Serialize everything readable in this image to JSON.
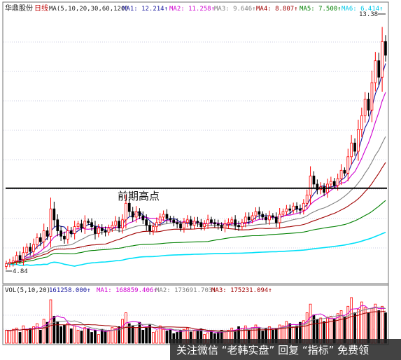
{
  "header": {
    "stock_name": "华鼎股份",
    "period": "日线",
    "ma_params": "MA(5,10,20,30,60,120)",
    "ma_values": [
      {
        "text": "MA1: 12.214↑",
        "color": "#1a1aa0"
      },
      {
        "text": "MA2: 11.258↑",
        "color": "#d000d0"
      },
      {
        "text": "MA3: 9.646↑",
        "color": "#808080"
      },
      {
        "text": "MA4: 8.807↑",
        "color": "#a00000"
      },
      {
        "text": "MA5: 7.500↑",
        "color": "#008000"
      },
      {
        "text": "MA6: 6.414↑",
        "color": "#00c8e8"
      }
    ]
  },
  "annotation": {
    "text": "前期高点"
  },
  "price_labels": {
    "max": "13.38",
    "min": "4.84"
  },
  "volume_header": {
    "params": "VOL(5,10,20)",
    "values": [
      {
        "text": "161258.000↑",
        "color": "#1a1aa0"
      },
      {
        "text": "MA1: 168859.406↑",
        "color": "#d000d0"
      },
      {
        "text": "MA2: 173691.703↑",
        "color": "#808080"
      },
      {
        "text": "MA3: 175231.094↑",
        "color": "#a00000"
      }
    ]
  },
  "watermark": {
    "text": "关注微信 “老韩实盘” 回复 “指标” 免费领"
  },
  "colors": {
    "up": "#ff0000",
    "down": "#000000",
    "grid": "#9ca0c8"
  },
  "chart_data": {
    "type": "candlestick",
    "ylim": [
      4.4,
      14.0
    ],
    "resistance_level": 7.75,
    "price_range": [
      4.84,
      13.38
    ],
    "closes": [
      5.0,
      5.05,
      5.1,
      5.3,
      5.15,
      5.4,
      5.6,
      5.45,
      5.7,
      5.95,
      5.8,
      6.2,
      6.0,
      7.0,
      6.6,
      6.2,
      6.0,
      5.9,
      6.2,
      6.1,
      6.35,
      6.45,
      6.3,
      6.55,
      6.5,
      6.35,
      6.1,
      6.3,
      6.2,
      6.15,
      6.3,
      6.4,
      6.55,
      6.3,
      6.6,
      7.2,
      6.9,
      6.7,
      6.9,
      6.75,
      6.6,
      6.4,
      6.2,
      6.35,
      6.5,
      6.7,
      6.8,
      6.65,
      6.6,
      6.5,
      6.45,
      6.3,
      6.5,
      6.6,
      6.4,
      6.55,
      6.5,
      6.35,
      6.45,
      6.6,
      6.5,
      6.45,
      6.4,
      6.3,
      6.45,
      6.5,
      6.6,
      6.4,
      6.35,
      6.5,
      6.7,
      6.6,
      6.75,
      6.9,
      6.8,
      6.7,
      6.6,
      6.75,
      6.7,
      6.5,
      6.8,
      6.9,
      7.0,
      6.95,
      7.1,
      7.0,
      6.95,
      7.2,
      7.5,
      8.2,
      7.9,
      7.7,
      7.8,
      7.6,
      7.9,
      8.0,
      7.85,
      8.1,
      8.4,
      8.3,
      8.9,
      9.4,
      9.1,
      9.9,
      10.4,
      11.0,
      10.6,
      11.6,
      12.4,
      11.8,
      13.1,
      12.6
    ],
    "volumes": [
      0.3,
      0.28,
      0.32,
      0.35,
      0.25,
      0.4,
      0.3,
      0.34,
      0.38,
      0.45,
      0.3,
      0.55,
      0.48,
      1.0,
      0.62,
      0.5,
      0.38,
      0.42,
      0.46,
      0.33,
      0.4,
      0.3,
      0.28,
      0.36,
      0.34,
      0.25,
      0.3,
      0.2,
      0.32,
      0.28,
      0.3,
      0.36,
      0.34,
      0.38,
      0.55,
      0.7,
      0.45,
      0.4,
      0.36,
      0.48,
      0.3,
      0.35,
      0.42,
      0.25,
      0.28,
      0.4,
      0.32,
      0.28,
      0.3,
      0.22,
      0.25,
      0.3,
      0.32,
      0.35,
      0.26,
      0.28,
      0.3,
      0.33,
      0.2,
      0.24,
      0.28,
      0.22,
      0.25,
      0.3,
      0.26,
      0.3,
      0.35,
      0.3,
      0.38,
      0.34,
      0.4,
      0.3,
      0.36,
      0.42,
      0.35,
      0.28,
      0.33,
      0.38,
      0.3,
      0.34,
      0.42,
      0.4,
      0.5,
      0.45,
      0.38,
      0.4,
      0.48,
      0.52,
      0.7,
      0.9,
      0.65,
      0.55,
      0.58,
      0.5,
      0.6,
      0.62,
      0.55,
      0.68,
      0.75,
      0.6,
      0.85,
      1.05,
      0.7,
      0.78,
      0.95,
      0.82,
      0.7,
      0.8,
      0.9,
      0.75,
      0.85,
      0.7
    ]
  }
}
